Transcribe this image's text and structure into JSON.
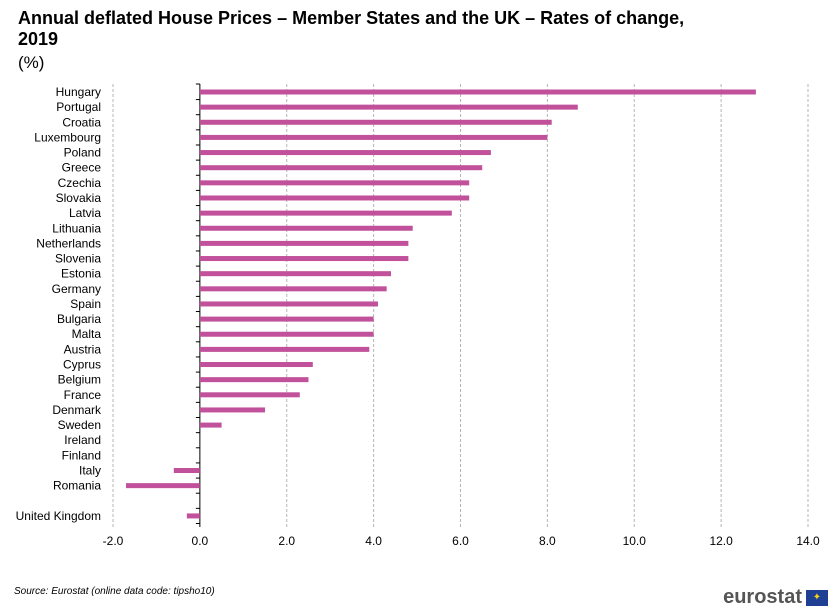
{
  "title": "Annual deflated House Prices – Member States  and the UK – Rates of change, 2019",
  "subtitle": "(%)",
  "source": "Source: Eurostat (online data code: tipsho10)",
  "logo_text": "eurostat",
  "logo_icon": "eu-flag-icon",
  "colors": {
    "bar": "#c1519b",
    "grid": "#b5b5b5",
    "axis": "#000000"
  },
  "chart_data": {
    "type": "bar",
    "orientation": "horizontal",
    "title": "Annual deflated House Prices – Member States  and the UK – Rates of change, 2019",
    "subtitle": "(%)",
    "categories": [
      "Hungary",
      "Portugal",
      "Croatia",
      "Luxembourg",
      "Poland",
      "Greece",
      "Czechia",
      "Slovakia",
      "Latvia",
      "Lithuania",
      "Netherlands",
      "Slovenia",
      "Estonia",
      "Germany",
      "Spain",
      "Bulgaria",
      "Malta",
      "Austria",
      "Cyprus",
      "Belgium",
      "France",
      "Denmark",
      "Sweden",
      "Ireland",
      "Finland",
      "Italy",
      "Romania",
      "",
      "United Kingdom"
    ],
    "values": [
      12.8,
      8.7,
      8.1,
      8.0,
      6.7,
      6.5,
      6.2,
      6.2,
      5.8,
      4.9,
      4.8,
      4.8,
      4.4,
      4.3,
      4.1,
      4.0,
      4.0,
      3.9,
      2.6,
      2.5,
      2.3,
      1.5,
      0.5,
      null,
      null,
      -0.6,
      -1.7,
      null,
      -0.3
    ],
    "xlim": [
      -2.0,
      14.0
    ],
    "xticks": [
      "-2.0",
      "0.0",
      "2.0",
      "4.0",
      "6.0",
      "8.0",
      "10.0",
      "12.0",
      "14.0"
    ],
    "xtick_values": [
      -2,
      0,
      2,
      4,
      6,
      8,
      10,
      12,
      14
    ],
    "grid": "vertical dashed",
    "legend": "none"
  }
}
